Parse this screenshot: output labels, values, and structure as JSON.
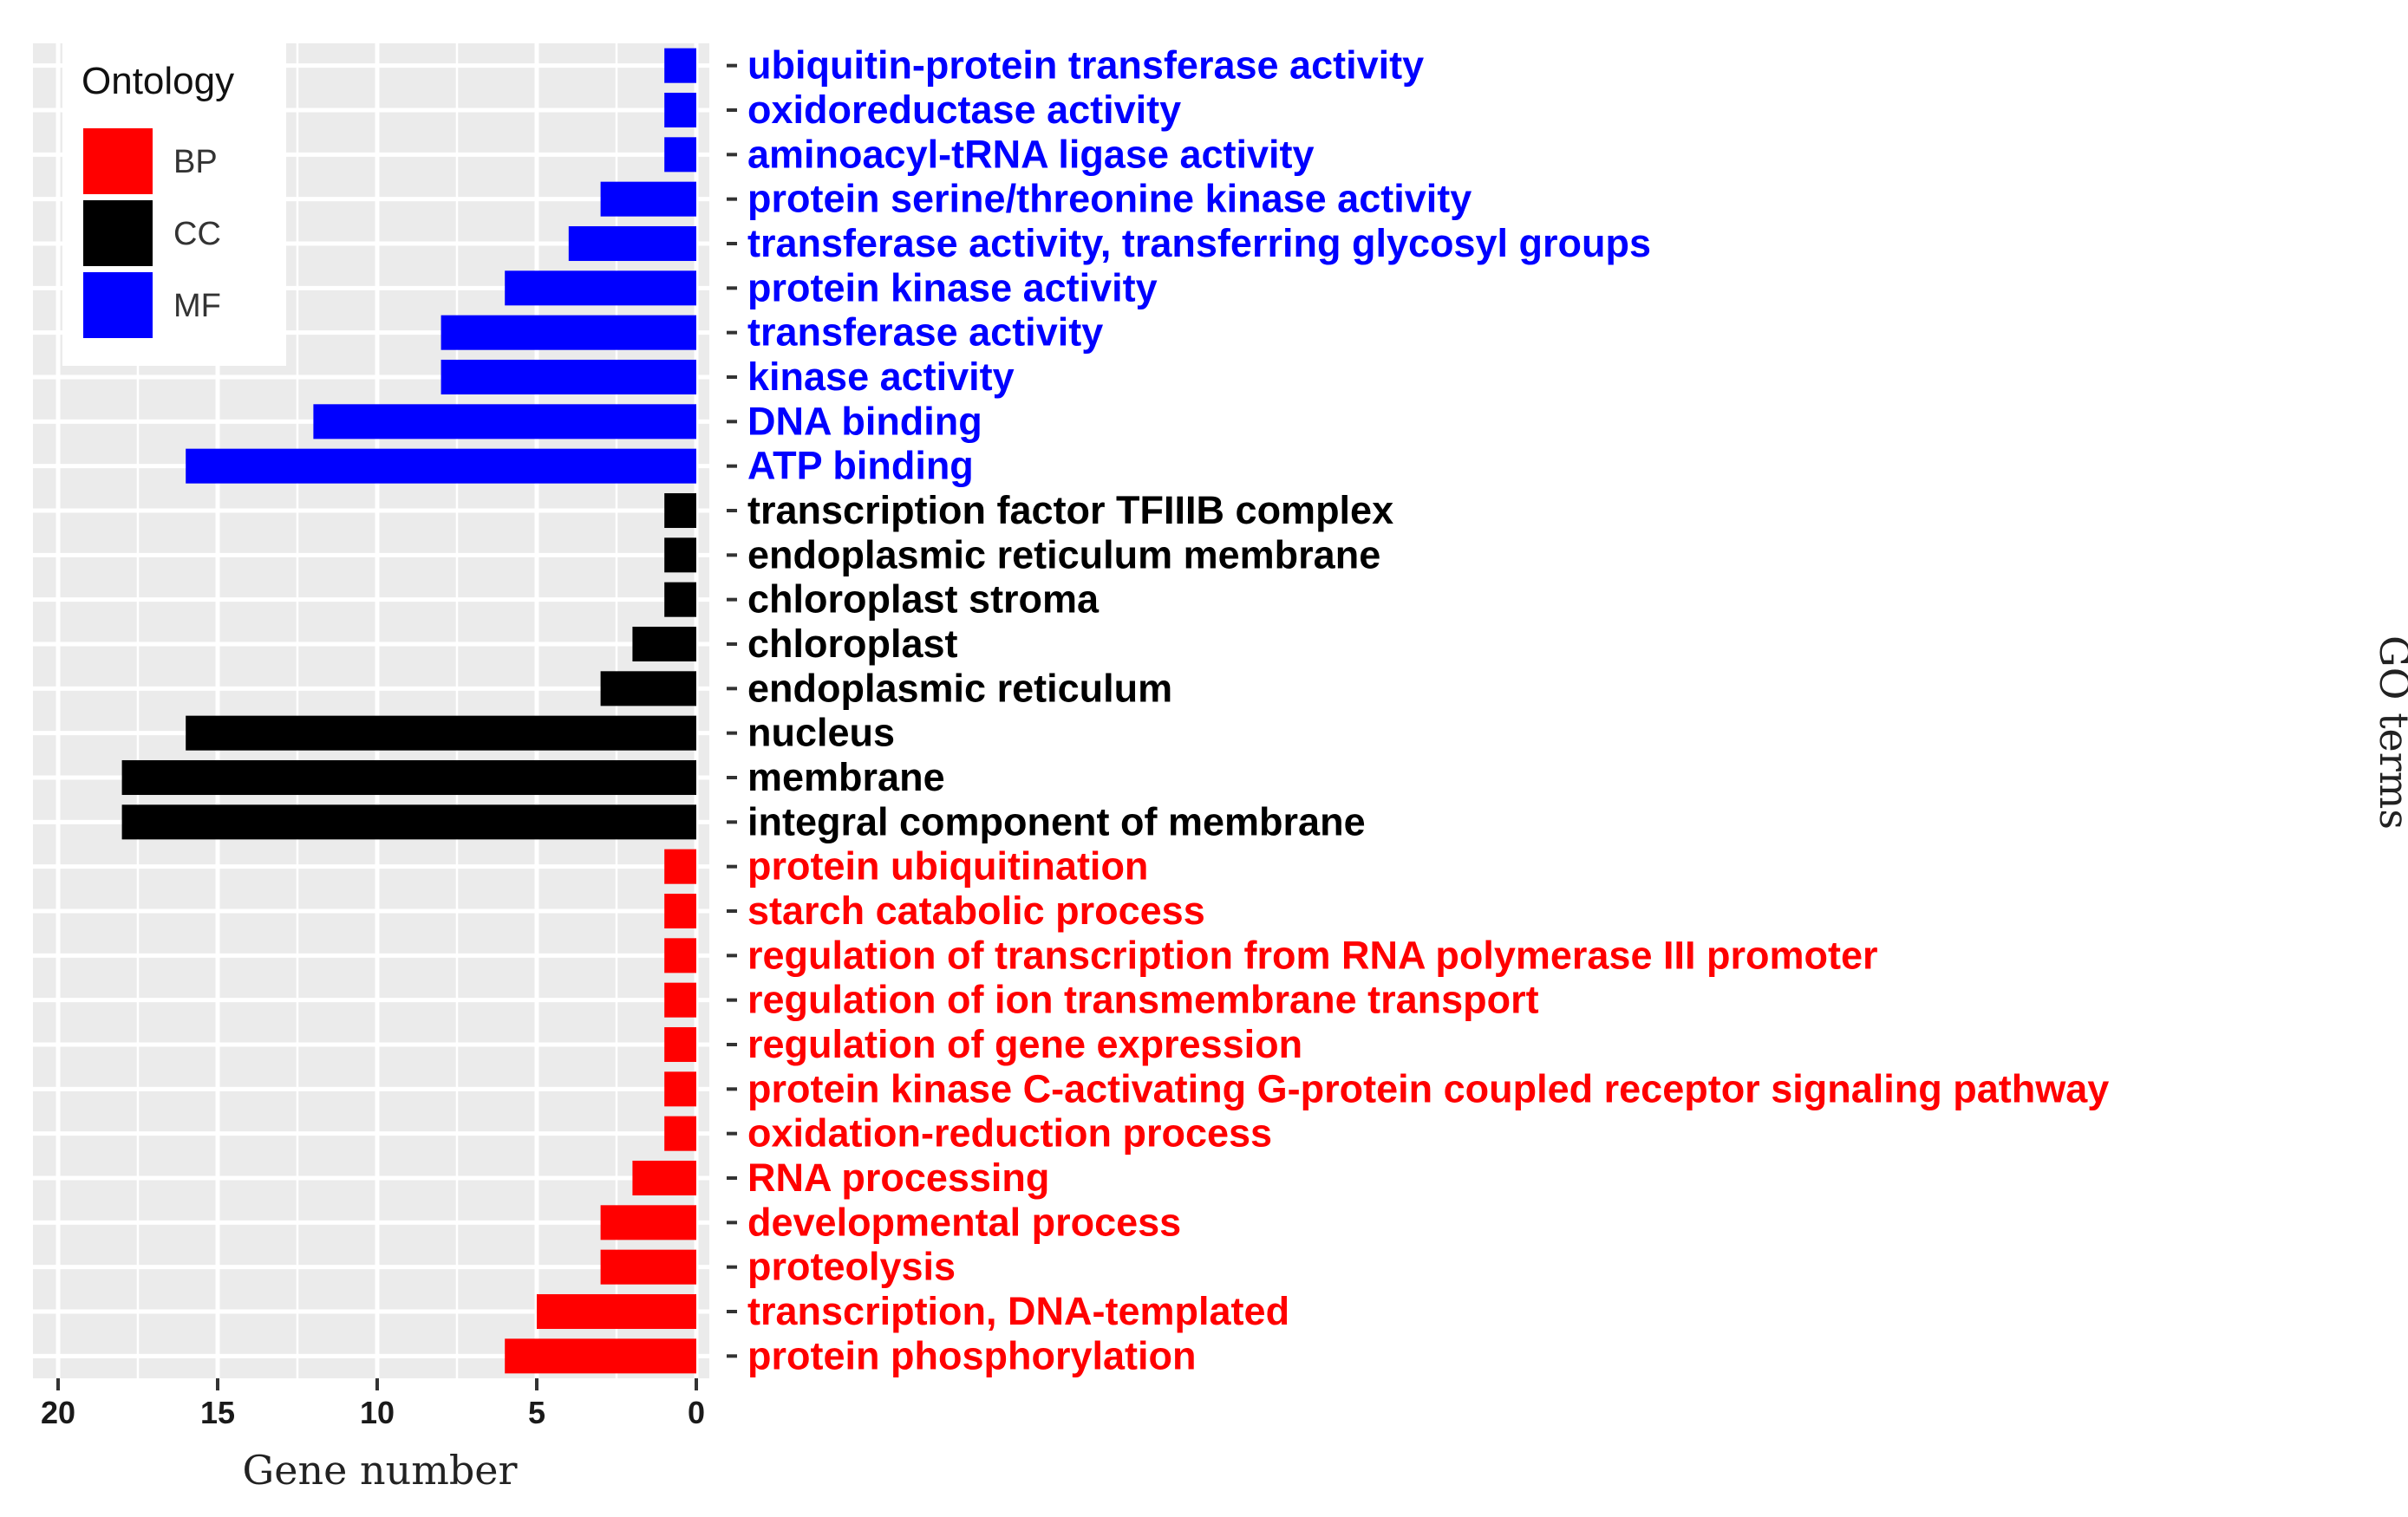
{
  "chart_data": {
    "type": "bar",
    "orientation": "horizontal",
    "x_direction": "reversed",
    "xlabel": "Gene number",
    "ylabel": "GO terms",
    "xlim": [
      0,
      20
    ],
    "x_ticks": [
      20,
      15,
      10,
      5,
      0
    ],
    "grid": true,
    "legend": {
      "title": "Ontology",
      "position": "top-left",
      "entries": [
        {
          "key": "BP",
          "label": "BP",
          "color": "#ff0000"
        },
        {
          "key": "CC",
          "label": "CC",
          "color": "#000000"
        },
        {
          "key": "MF",
          "label": "MF",
          "color": "#0000ff"
        }
      ]
    },
    "categories": [
      {
        "term": "ubiquitin-protein transferase activity",
        "ontology": "MF",
        "value": 1
      },
      {
        "term": "oxidoreductase activity",
        "ontology": "MF",
        "value": 1
      },
      {
        "term": "aminoacyl-tRNA ligase activity",
        "ontology": "MF",
        "value": 1
      },
      {
        "term": "protein serine/threonine kinase activity",
        "ontology": "MF",
        "value": 3
      },
      {
        "term": "transferase activity, transferring glycosyl groups",
        "ontology": "MF",
        "value": 4
      },
      {
        "term": "protein kinase activity",
        "ontology": "MF",
        "value": 6
      },
      {
        "term": "transferase activity",
        "ontology": "MF",
        "value": 8
      },
      {
        "term": "kinase activity",
        "ontology": "MF",
        "value": 8
      },
      {
        "term": "DNA binding",
        "ontology": "MF",
        "value": 12
      },
      {
        "term": "ATP binding",
        "ontology": "MF",
        "value": 16
      },
      {
        "term": "transcription factor TFIIIB complex",
        "ontology": "CC",
        "value": 1
      },
      {
        "term": "endoplasmic reticulum membrane",
        "ontology": "CC",
        "value": 1
      },
      {
        "term": "chloroplast stroma",
        "ontology": "CC",
        "value": 1
      },
      {
        "term": "chloroplast",
        "ontology": "CC",
        "value": 2
      },
      {
        "term": "endoplasmic reticulum",
        "ontology": "CC",
        "value": 3
      },
      {
        "term": "nucleus",
        "ontology": "CC",
        "value": 16
      },
      {
        "term": "membrane",
        "ontology": "CC",
        "value": 18
      },
      {
        "term": "integral component of membrane",
        "ontology": "CC",
        "value": 18
      },
      {
        "term": "protein ubiquitination",
        "ontology": "BP",
        "value": 1
      },
      {
        "term": "starch catabolic process",
        "ontology": "BP",
        "value": 1
      },
      {
        "term": "regulation of transcription from RNA polymerase III promoter",
        "ontology": "BP",
        "value": 1
      },
      {
        "term": "regulation of ion transmembrane transport",
        "ontology": "BP",
        "value": 1
      },
      {
        "term": "regulation of gene expression",
        "ontology": "BP",
        "value": 1
      },
      {
        "term": "protein kinase C-activating G-protein coupled receptor signaling pathway",
        "ontology": "BP",
        "value": 1
      },
      {
        "term": "oxidation-reduction process",
        "ontology": "BP",
        "value": 1
      },
      {
        "term": "RNA processing",
        "ontology": "BP",
        "value": 2
      },
      {
        "term": "developmental process",
        "ontology": "BP",
        "value": 3
      },
      {
        "term": "proteolysis",
        "ontology": "BP",
        "value": 3
      },
      {
        "term": "transcription, DNA-templated",
        "ontology": "BP",
        "value": 5
      },
      {
        "term": "protein phosphorylation",
        "ontology": "BP",
        "value": 6
      }
    ],
    "colors": {
      "panel_background": "#ebebeb",
      "grid": "#ffffff",
      "tick": "#333333"
    }
  }
}
